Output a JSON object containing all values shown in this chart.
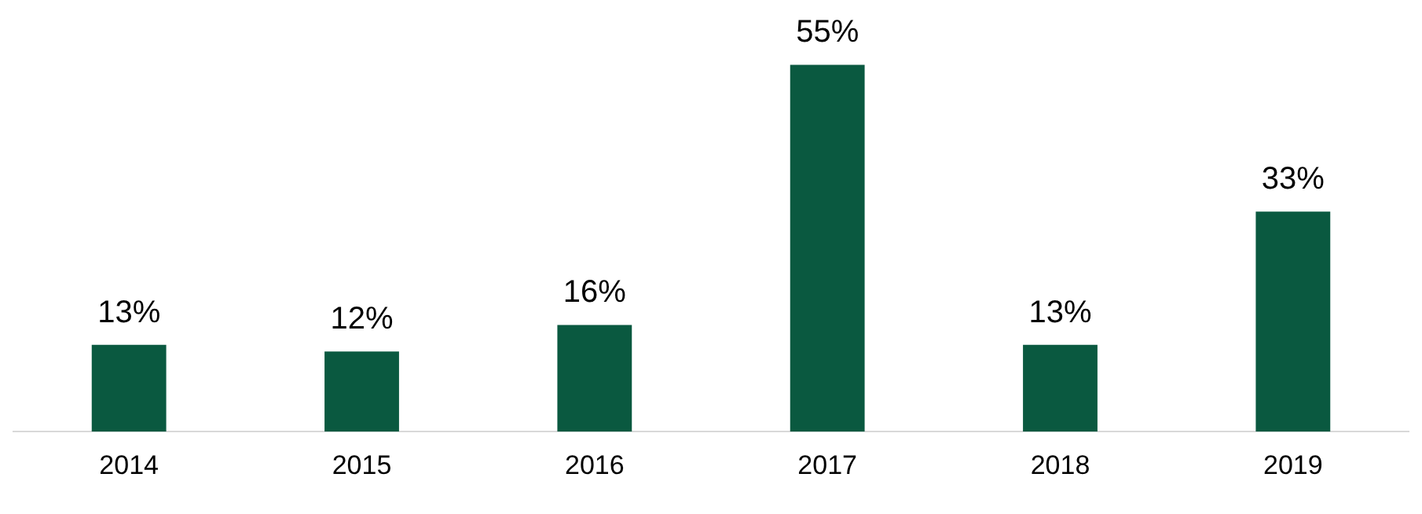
{
  "chart_data": {
    "type": "bar",
    "categories": [
      "2014",
      "2015",
      "2016",
      "2017",
      "2018",
      "2019"
    ],
    "values": [
      13,
      12,
      16,
      55,
      13,
      33
    ],
    "value_labels": [
      "13%",
      "12%",
      "16%",
      "55%",
      "13%",
      "33%"
    ],
    "color": "#0a5940",
    "grid": false,
    "legend": false
  }
}
